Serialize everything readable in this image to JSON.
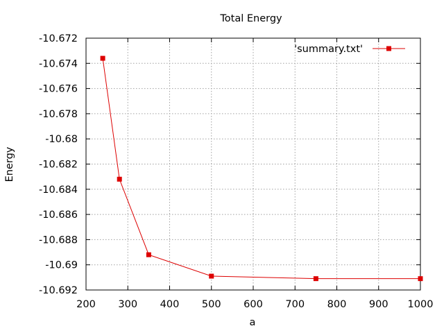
{
  "chart_data": {
    "type": "line",
    "title": "Total Energy",
    "xlabel": "a",
    "ylabel": "Energy",
    "xlim": [
      200,
      1000
    ],
    "ylim": [
      -10.692,
      -10.672
    ],
    "x_ticks": [
      200,
      300,
      400,
      500,
      600,
      700,
      800,
      900,
      1000
    ],
    "y_ticks": [
      -10.672,
      -10.674,
      -10.676,
      -10.678,
      -10.68,
      -10.682,
      -10.684,
      -10.686,
      -10.688,
      -10.69,
      -10.692
    ],
    "x_tick_labels": [
      "200",
      "300",
      "400",
      "500",
      "600",
      "700",
      "800",
      "900",
      "1000"
    ],
    "y_tick_labels": [
      "-10.672",
      "-10.674",
      "-10.676",
      "-10.678",
      "-10.68",
      "-10.682",
      "-10.684",
      "-10.686",
      "-10.688",
      "-10.69",
      "-10.692"
    ],
    "grid": true,
    "legend_position": "top-right",
    "series": [
      {
        "name": "'summary.txt'",
        "color": "#dd0000",
        "marker": "square",
        "x": [
          240,
          280,
          350,
          500,
          750,
          1000
        ],
        "y": [
          -10.6736,
          -10.6832,
          -10.6892,
          -10.6909,
          -10.6911,
          -10.6911
        ]
      }
    ]
  }
}
